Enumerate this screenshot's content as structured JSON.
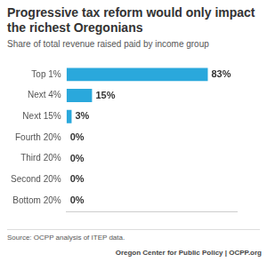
{
  "chart_data": {
    "type": "bar",
    "orientation": "horizontal",
    "title": "Progressive tax reform would only impact the richest Oregonians",
    "subtitle": "Share of total revenue raised paid by income group",
    "categories": [
      "Top 1%",
      "Next 4%",
      "Next 15%",
      "Fourth 20%",
      "Third 20%",
      "Second 20%",
      "Bottom 20%"
    ],
    "values": [
      83,
      15,
      3,
      0,
      0,
      0,
      0
    ],
    "value_labels": [
      "83%",
      "15%",
      "3%",
      "0%",
      "0%",
      "0%",
      "0%"
    ],
    "data_labels": true,
    "color": "#2aa8dc",
    "xlim": [
      0,
      100
    ],
    "grid": false,
    "tick_labels": "y",
    "annotations": [
      "Source: OCPP analysis of ITEP data.",
      "Oregon Center for Public Policy | OCPP.org"
    ]
  }
}
